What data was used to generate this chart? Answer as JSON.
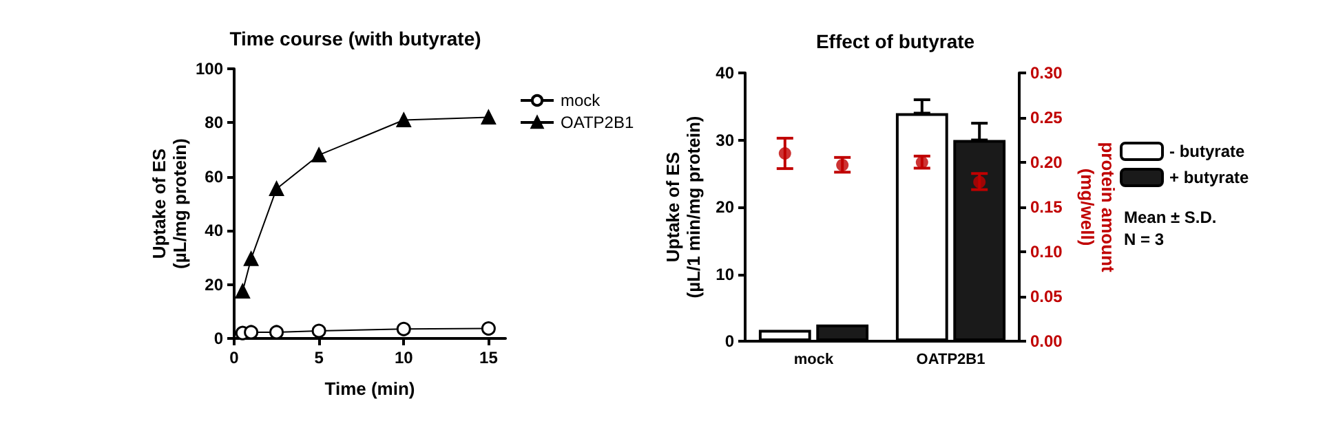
{
  "chart_data": [
    {
      "type": "line",
      "title": "Time course (with butyrate)",
      "xlabel": "Time (min)",
      "ylabel": "Uptake of ES\n(µL/mg protein)",
      "x": [
        0.5,
        1,
        2.5,
        5,
        10,
        15
      ],
      "series": [
        {
          "name": "mock",
          "color": "#000000",
          "marker": "circle",
          "values": [
            2,
            2.3,
            2.3,
            2.8,
            3.5,
            3.7
          ]
        },
        {
          "name": "OATP2B1",
          "color": "#000000",
          "marker": "triangle",
          "values": [
            17.5,
            29.5,
            55.5,
            68,
            81,
            82
          ]
        }
      ],
      "xlim": [
        0,
        16
      ],
      "xticks": [
        0,
        5,
        10,
        15
      ],
      "ylim": [
        0,
        100
      ],
      "yticks": [
        0,
        20,
        40,
        60,
        80,
        100
      ],
      "legend": "right",
      "grid": false
    },
    {
      "type": "bar",
      "title": "Effect of butyrate",
      "ylabel": "Uptake of ES\n(µL/1 min/mg protein)",
      "y2label": "protein amount\n(mg/well)",
      "categories": [
        "mock",
        "OATP2B1"
      ],
      "series": [
        {
          "name": "- butyrate",
          "color": "#ffffff",
          "values": [
            1.7,
            34
          ],
          "errors": [
            null,
            [
              34,
              36
            ]
          ]
        },
        {
          "name": "+ butyrate",
          "color": "#1a1a1a",
          "values": [
            2.5,
            30
          ],
          "errors": [
            null,
            [
              30,
              32.5
            ]
          ]
        },
        {
          "type": "scatter",
          "axis": "y2",
          "color": "#c00000",
          "x": [
            "mock",
            "OATP2B1"
          ],
          "values": [
            0.21,
            0.2
          ],
          "errors": [
            [
              0.193,
              0.227
            ],
            [
              0.1935,
              0.207
            ]
          ]
        },
        {
          "type": "scatter",
          "axis": "y2",
          "color": "#c00000",
          "x": [
            "mock",
            "OATP2B1"
          ],
          "values": [
            0.197,
            0.178
          ],
          "errors": [
            [
              0.189,
              0.2055
            ],
            [
              0.1695,
              0.1875
            ]
          ]
        }
      ],
      "ylim": [
        0,
        40
      ],
      "yticks": [
        0,
        10,
        20,
        30,
        40
      ],
      "y2lim": [
        0,
        0.3
      ],
      "y2ticks": [
        {
          "value": 0,
          "label": "0.00"
        },
        {
          "value": 0.05,
          "label": "0.05"
        },
        {
          "value": 0.1,
          "label": "0.10"
        },
        {
          "value": 0.15,
          "label": "0.15"
        },
        {
          "value": 0.2,
          "label": "0.20"
        },
        {
          "value": 0.25,
          "label": "0.25"
        },
        {
          "value": 0.3,
          "label": "0.30"
        }
      ],
      "legend": "right",
      "grid": false,
      "annotations": [
        "Mean ± S.D.",
        "N = 3"
      ]
    }
  ]
}
